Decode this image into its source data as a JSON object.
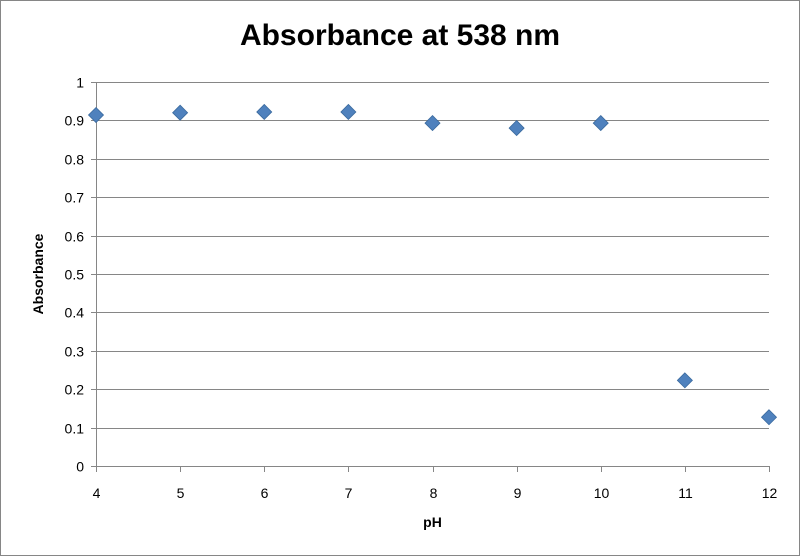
{
  "chart_data": {
    "type": "scatter",
    "title": "Absorbance at 538 nm",
    "xlabel": "pH",
    "ylabel": "Absorbance",
    "xlim": [
      4,
      12
    ],
    "ylim": [
      0,
      1
    ],
    "x_ticks": [
      4,
      5,
      6,
      7,
      8,
      9,
      10,
      11,
      12
    ],
    "y_ticks": [
      0,
      0.1,
      0.2,
      0.3,
      0.4,
      0.5,
      0.6,
      0.7,
      0.8,
      0.9,
      1
    ],
    "grid": "horizontal",
    "legend": "none",
    "marker": "diamond",
    "marker_color": "#4f81bd",
    "series": [
      {
        "x": [
          4,
          5,
          6,
          7,
          8,
          9,
          10,
          11,
          12
        ],
        "y": [
          0.914,
          0.92,
          0.922,
          0.922,
          0.893,
          0.88,
          0.893,
          0.223,
          0.127
        ]
      }
    ]
  }
}
